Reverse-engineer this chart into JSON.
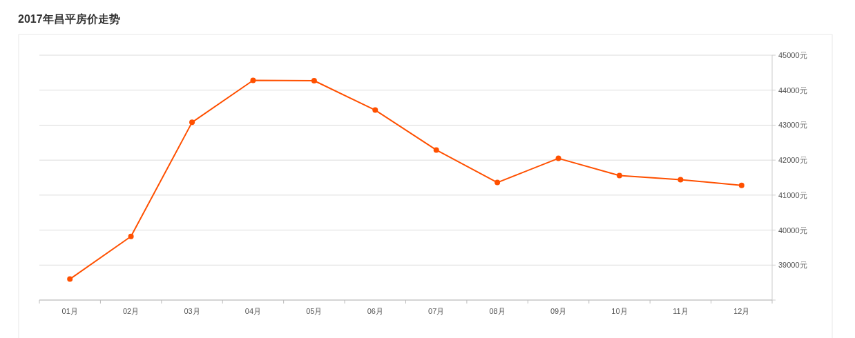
{
  "chart_data": {
    "type": "line",
    "title": "2017年昌平房价走势",
    "categories": [
      "01月",
      "02月",
      "03月",
      "04月",
      "05月",
      "06月",
      "07月",
      "08月",
      "09月",
      "10月",
      "11月",
      "12月"
    ],
    "series": [
      {
        "color": "#ff5000",
        "values": [
          38600,
          39820,
          43080,
          44280,
          44270,
          43430,
          42290,
          41360,
          42050,
          41560,
          41440,
          41280
        ]
      }
    ],
    "ylim": [
      38000,
      45000
    ],
    "yticks": [
      {
        "value": 38000,
        "label": null
      },
      {
        "value": 39000,
        "label": "39000元"
      },
      {
        "value": 40000,
        "label": "40000元"
      },
      {
        "value": 41000,
        "label": "41000元"
      },
      {
        "value": 42000,
        "label": "42000元"
      },
      {
        "value": 43000,
        "label": "43000元"
      },
      {
        "value": 44000,
        "label": "44000元"
      },
      {
        "value": 45000,
        "label": "45000元"
      }
    ],
    "grid": "y",
    "marker": "circle",
    "line_style": "solid"
  }
}
